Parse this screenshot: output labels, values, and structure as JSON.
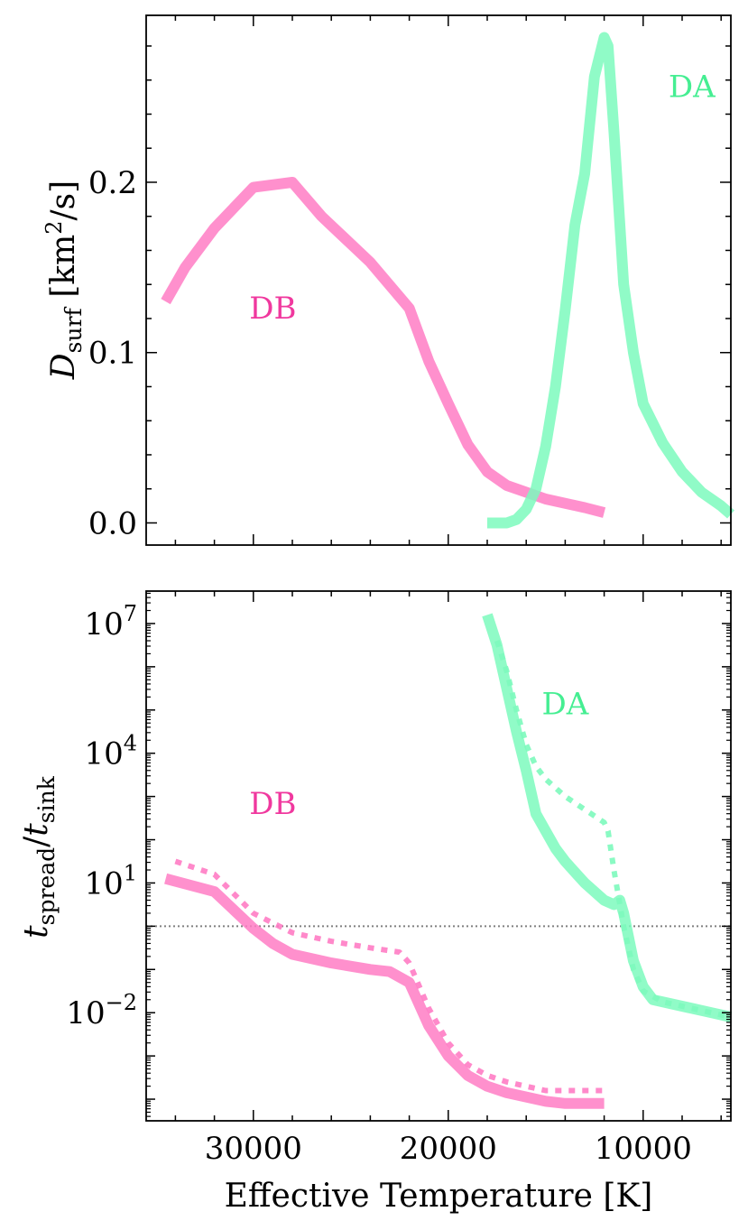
{
  "chart_data": [
    {
      "type": "line",
      "panel": "top",
      "xlabel": "Effective Temperature [K]",
      "ylabel_main": "D",
      "ylabel_sub": "surf",
      "ylabel_unit_pre": " [km",
      "ylabel_unit_sup": "2",
      "ylabel_unit_post": "/s]",
      "xlim": [
        35500,
        5500
      ],
      "ylim": [
        -0.013,
        0.298
      ],
      "yticks": [
        {
          "value": 0.0,
          "label": "0.0"
        },
        {
          "value": 0.1,
          "label": "0.1"
        },
        {
          "value": 0.2,
          "label": "0.2"
        }
      ],
      "series": [
        {
          "name": "DB",
          "color": "#ff7cc4",
          "style": "solid",
          "x": [
            34500,
            33500,
            32000,
            30000,
            28000,
            26500,
            24000,
            22000,
            21000,
            20000,
            19000,
            18000,
            17000,
            15000,
            13000,
            12000
          ],
          "y": [
            0.13,
            0.15,
            0.173,
            0.197,
            0.2,
            0.18,
            0.153,
            0.126,
            0.095,
            0.07,
            0.046,
            0.03,
            0.022,
            0.014,
            0.009,
            0.006
          ]
        },
        {
          "name": "DA",
          "color": "#7dfabd",
          "style": "solid",
          "x": [
            18000,
            17000,
            16500,
            16000,
            15500,
            15000,
            14500,
            14000,
            13500,
            13000,
            12500,
            12000,
            11800,
            11500,
            11000,
            10500,
            10000,
            9000,
            8000,
            7000,
            6000,
            5500
          ],
          "y": [
            0.0,
            0.0,
            0.002,
            0.008,
            0.02,
            0.045,
            0.08,
            0.125,
            0.175,
            0.205,
            0.262,
            0.285,
            0.28,
            0.23,
            0.14,
            0.1,
            0.07,
            0.047,
            0.03,
            0.018,
            0.01,
            0.005
          ]
        }
      ],
      "annotations": [
        {
          "text": "DB",
          "color": "#f0389e",
          "x": 29000,
          "y": 0.12
        },
        {
          "text": "DA",
          "color": "#45ee92",
          "x": 7500,
          "y": 0.25
        }
      ]
    },
    {
      "type": "line",
      "panel": "bottom",
      "xlabel": "Effective Temperature [K]",
      "ylabel_t": "t",
      "ylabel_sub1": "spread",
      "ylabel_slash": "/",
      "ylabel_sub2": "sink",
      "yscale": "log",
      "xlim": [
        35500,
        5500
      ],
      "ylim_log10": [
        -4.5,
        7.75
      ],
      "xticks": [
        {
          "value": 30000,
          "label": "30000"
        },
        {
          "value": 20000,
          "label": "20000"
        },
        {
          "value": 10000,
          "label": "10000"
        }
      ],
      "yticks": [
        {
          "exp": -2,
          "base": "10",
          "sup": "−2"
        },
        {
          "exp": 1,
          "base": "10",
          "sup": "1"
        },
        {
          "exp": 4,
          "base": "10",
          "sup": "4"
        },
        {
          "exp": 7,
          "base": "10",
          "sup": "7"
        }
      ],
      "reference_line": {
        "value": 1.0,
        "color": "#808080",
        "style": "dotted"
      },
      "series": [
        {
          "name": "DB",
          "color": "#ff7cc4",
          "style": "solid",
          "x": [
            34500,
            32000,
            30000,
            29000,
            28000,
            26000,
            24000,
            23000,
            22000,
            21000,
            20000,
            19000,
            18000,
            17000,
            16000,
            15000,
            14000,
            13000,
            12000
          ],
          "y_log10": [
            1.1,
            0.8,
            -0.05,
            -0.4,
            -0.65,
            -0.85,
            -1.0,
            -1.05,
            -1.3,
            -2.3,
            -3.0,
            -3.45,
            -3.7,
            -3.85,
            -3.95,
            -4.05,
            -4.1,
            -4.1,
            -4.1
          ]
        },
        {
          "name": "DB",
          "color": "#ff7cc4",
          "style": "dotted",
          "x": [
            34000,
            32000,
            30000,
            28000,
            26000,
            24000,
            22500,
            22000,
            21000,
            20000,
            19000,
            18000,
            17000,
            16000,
            15000,
            14000,
            13000,
            12000
          ],
          "y_log10": [
            1.5,
            1.2,
            0.3,
            -0.15,
            -0.35,
            -0.5,
            -0.6,
            -0.85,
            -1.9,
            -2.7,
            -3.2,
            -3.45,
            -3.6,
            -3.7,
            -3.8,
            -3.8,
            -3.8,
            -3.8
          ]
        },
        {
          "name": "DA",
          "color": "#7dfabd",
          "style": "solid",
          "x": [
            18000,
            17500,
            17000,
            16500,
            16000,
            15500,
            15000,
            14500,
            14000,
            13000,
            12000,
            11500,
            11200,
            11000,
            10500,
            10000,
            9500,
            8500,
            7500,
            6500,
            5500
          ],
          "y_log10": [
            7.2,
            6.5,
            5.5,
            4.5,
            3.6,
            2.6,
            2.2,
            1.8,
            1.5,
            1.0,
            0.6,
            0.5,
            0.6,
            0.3,
            -0.8,
            -1.4,
            -1.7,
            -1.8,
            -1.9,
            -2.0,
            -2.1
          ]
        },
        {
          "name": "DA",
          "color": "#7dfabd",
          "style": "dotted",
          "x": [
            17500,
            17000,
            16500,
            16000,
            15500,
            15000,
            14500,
            14000,
            13000,
            12000,
            11800,
            11500,
            11000,
            10500,
            10000,
            9000,
            8000,
            7000,
            6000,
            5500
          ],
          "y_log10": [
            6.6,
            5.9,
            5.0,
            4.2,
            3.7,
            3.4,
            3.2,
            3.0,
            2.7,
            2.4,
            2.2,
            1.3,
            0.0,
            -1.0,
            -1.5,
            -1.75,
            -1.85,
            -1.95,
            -2.05,
            -2.1
          ]
        }
      ],
      "annotations": [
        {
          "text": "DB",
          "color": "#f0389e",
          "x": 29000,
          "y_log10": 2.6
        },
        {
          "text": "DA",
          "color": "#45ee92",
          "x": 14000,
          "y_log10": 4.9
        }
      ]
    }
  ]
}
